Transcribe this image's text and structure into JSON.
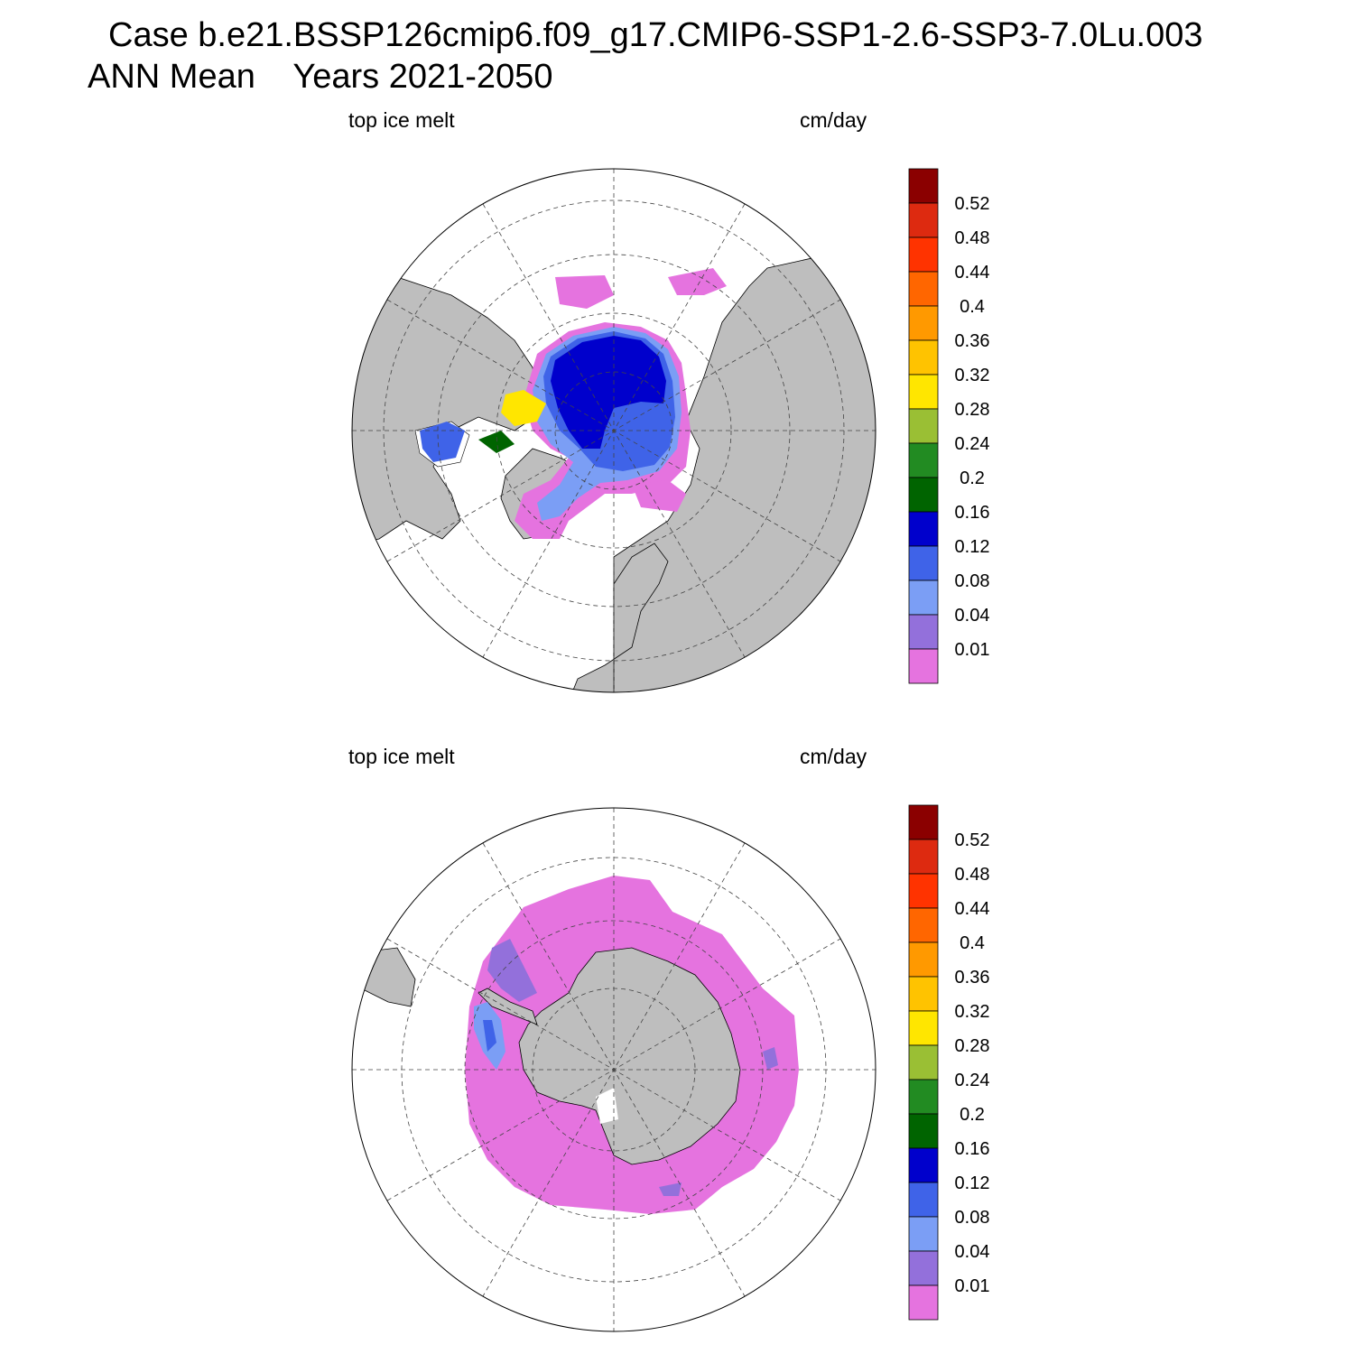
{
  "header": {
    "title_line1": "Case b.e21.BSSP126cmip6.f09_g17.CMIP6-SSP1-2.6-SSP3-7.0Lu.003",
    "title_line2": "ANN Mean    Years 2021-2050"
  },
  "panels": [
    {
      "left_label": "top ice melt",
      "right_label": "cm/day",
      "hemisphere": "north"
    },
    {
      "left_label": "top ice melt",
      "right_label": "cm/day",
      "hemisphere": "south"
    }
  ],
  "colorbar": {
    "levels": [
      "0.01",
      "0.04",
      "0.08",
      "0.12",
      "0.16",
      "0.2",
      "0.24",
      "0.28",
      "0.32",
      "0.36",
      "0.4",
      "0.44",
      "0.48",
      "0.52"
    ],
    "colors": [
      "#e573df",
      "#9370db",
      "#7b9ef5",
      "#3f63e8",
      "#0000cc",
      "#006400",
      "#228b22",
      "#9abf34",
      "#ffe600",
      "#ffc300",
      "#ff9900",
      "#ff6600",
      "#ff3300",
      "#dd2a10",
      "#8b0000"
    ]
  },
  "map_colors": {
    "land": "#bebebe",
    "ocean": "#ffffff"
  }
}
